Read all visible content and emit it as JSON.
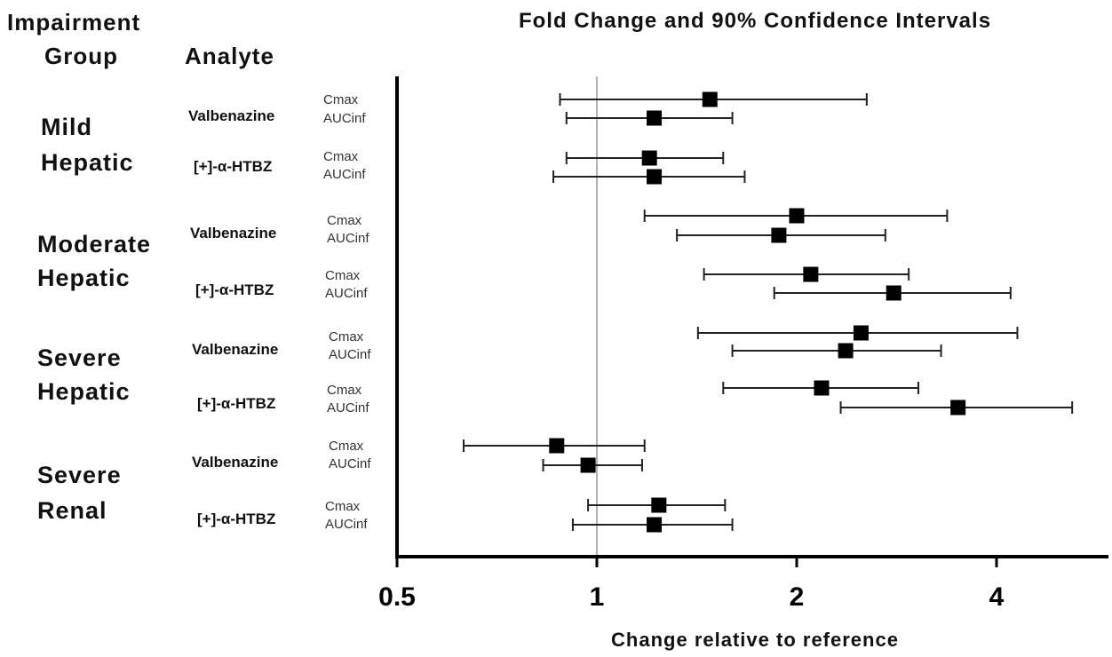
{
  "headers": {
    "impairment_line1": "Impairment",
    "impairment_line2": "Group",
    "analyte": "Analyte"
  },
  "chart_data": {
    "type": "forest",
    "title": "Fold Change and 90% Confidence Intervals",
    "xlabel": "Change relative to reference",
    "xscale": "log2",
    "xlim": [
      0.5,
      5.5
    ],
    "xticks": [
      0.5,
      1,
      2,
      4
    ],
    "xtick_labels": [
      "0.5",
      "1",
      "2",
      "4"
    ],
    "reference_line": 1,
    "groups": [
      {
        "label1": "Mild",
        "label2": "Hepatic",
        "analytes": [
          {
            "name": "Valbenazine",
            "rows": [
              {
                "metric": "Cmax",
                "est": 1.48,
                "lo": 0.88,
                "hi": 2.55
              },
              {
                "metric": "AUCinf",
                "est": 1.22,
                "lo": 0.9,
                "hi": 1.6
              }
            ]
          },
          {
            "name": "[+]-α-HTBZ",
            "rows": [
              {
                "metric": "Cmax",
                "est": 1.2,
                "lo": 0.9,
                "hi": 1.55
              },
              {
                "metric": "AUCinf",
                "est": 1.22,
                "lo": 0.86,
                "hi": 1.67
              }
            ]
          }
        ]
      },
      {
        "label1": "Moderate",
        "label2": "Hepatic",
        "analytes": [
          {
            "name": "Valbenazine",
            "rows": [
              {
                "metric": "Cmax",
                "est": 2.0,
                "lo": 1.18,
                "hi": 3.37
              },
              {
                "metric": "AUCinf",
                "est": 1.88,
                "lo": 1.32,
                "hi": 2.72
              }
            ]
          },
          {
            "name": "[+]-α-HTBZ",
            "rows": [
              {
                "metric": "Cmax",
                "est": 2.1,
                "lo": 1.45,
                "hi": 2.95
              },
              {
                "metric": "AUCinf",
                "est": 2.8,
                "lo": 1.85,
                "hi": 4.2
              }
            ]
          }
        ]
      },
      {
        "label1": "Severe",
        "label2": "Hepatic",
        "analytes": [
          {
            "name": "Valbenazine",
            "rows": [
              {
                "metric": "Cmax",
                "est": 2.5,
                "lo": 1.42,
                "hi": 4.3
              },
              {
                "metric": "AUCinf",
                "est": 2.37,
                "lo": 1.6,
                "hi": 3.3
              }
            ]
          },
          {
            "name": "[+]-α-HTBZ",
            "rows": [
              {
                "metric": "Cmax",
                "est": 2.18,
                "lo": 1.55,
                "hi": 3.05
              },
              {
                "metric": "AUCinf",
                "est": 3.5,
                "lo": 2.33,
                "hi": 5.2
              }
            ]
          }
        ]
      },
      {
        "label1": "Severe",
        "label2": "Renal",
        "analytes": [
          {
            "name": "Valbenazine",
            "rows": [
              {
                "metric": "Cmax",
                "est": 0.87,
                "lo": 0.63,
                "hi": 1.18
              },
              {
                "metric": "AUCinf",
                "est": 0.97,
                "lo": 0.83,
                "hi": 1.17
              }
            ]
          },
          {
            "name": "[+]-α-HTBZ",
            "rows": [
              {
                "metric": "Cmax",
                "est": 1.24,
                "lo": 0.97,
                "hi": 1.56
              },
              {
                "metric": "AUCinf",
                "est": 1.22,
                "lo": 0.92,
                "hi": 1.6
              }
            ]
          }
        ]
      }
    ]
  }
}
